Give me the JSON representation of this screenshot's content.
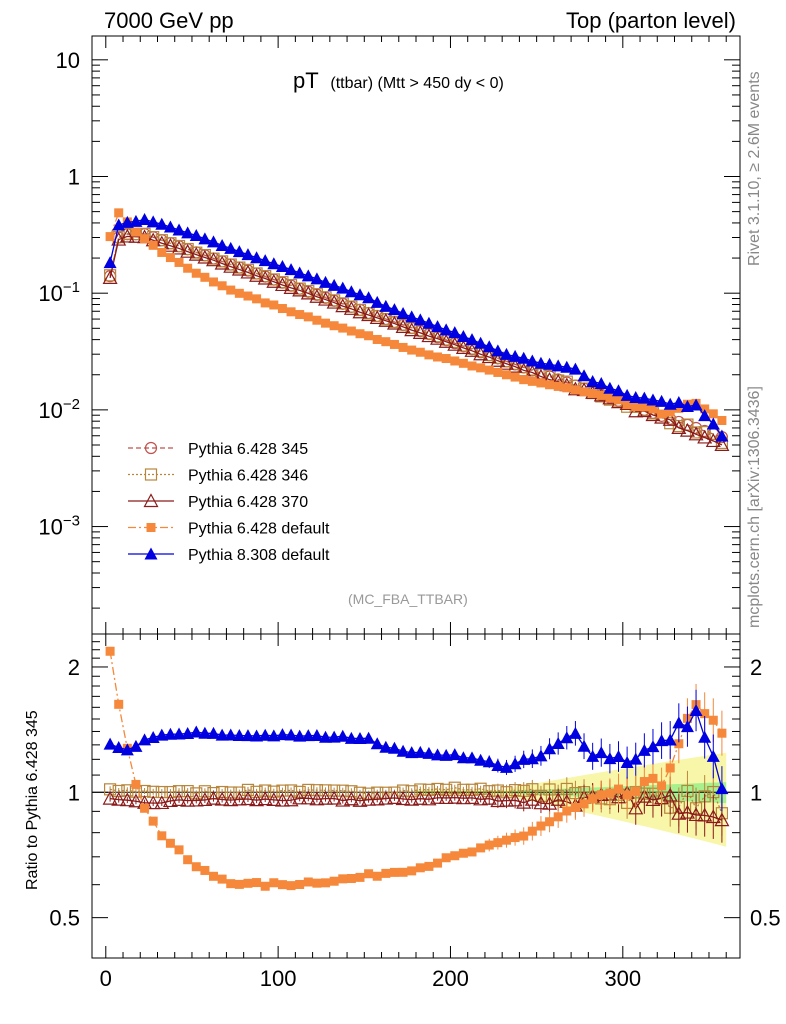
{
  "header": {
    "left": "7000 GeV pp",
    "right": "Top (parton level)"
  },
  "side_labels": {
    "rivet": "Rivet 3.1.10, ≥ 2.6M events",
    "mcplots": "mcplots.cern.ch [arXiv:1306.3436]"
  },
  "chart_data": [
    {
      "type": "line",
      "panel": "main",
      "title_main": "pT",
      "title_sub": "(ttbar) (Mtt > 450 dy < 0)",
      "watermark": "(MC_FBA_TTBAR)",
      "xlabel": "",
      "ylabel": "",
      "y_scale": "log",
      "xlim": [
        -8,
        368
      ],
      "ylim": [
        0.00012,
        16
      ],
      "y_ticks": [
        {
          "value": 10,
          "base": "10",
          "exp": ""
        },
        {
          "value": 1,
          "base": "1",
          "exp": ""
        },
        {
          "value": 0.1,
          "base": "10",
          "exp": "−1"
        },
        {
          "value": 0.01,
          "base": "10",
          "exp": "−2"
        },
        {
          "value": 0.001,
          "base": "10",
          "exp": "−3"
        }
      ],
      "legend": [
        {
          "name": "Pythia 6.428 345",
          "color": "#c0504d",
          "marker": "open-circle",
          "dash": "5,3"
        },
        {
          "name": "Pythia 6.428 346",
          "color": "#b8863b",
          "marker": "open-square",
          "dash": "2,2"
        },
        {
          "name": "Pythia 6.428 370",
          "color": "#8b1a1a",
          "marker": "open-triangle",
          "dash": ""
        },
        {
          "name": "Pythia 6.428 default",
          "color": "#f5883a",
          "marker": "filled-square",
          "dash": "8,3,2,3"
        },
        {
          "name": "Pythia 8.308 default",
          "color": "#0000e0",
          "marker": "filled-triangle",
          "dash": ""
        }
      ],
      "series_shape": {
        "x_start": 2.5,
        "x_step": 5,
        "n_bins": 72,
        "reference_rise": [
          0.14,
          0.3,
          0.32
        ],
        "reference_peak": 0.33,
        "reference_decay_per_unit": 0.01195,
        "reference_decay_start_x": 20
      }
    },
    {
      "type": "line",
      "panel": "ratio",
      "ylabel": "Ratio to Pythia 6.428 345",
      "y_scale": "log",
      "ylim": [
        0.4,
        2.4
      ],
      "y_ticks": [
        {
          "value": 0.5,
          "label": "0.5"
        },
        {
          "value": 1,
          "label": "1"
        },
        {
          "value": 2,
          "label": "2"
        }
      ],
      "x_ticks": [
        {
          "value": 0,
          "label": "0"
        },
        {
          "value": 100,
          "label": "100"
        },
        {
          "value": 200,
          "label": "200"
        },
        {
          "value": 300,
          "label": "300"
        }
      ],
      "xlabel": "",
      "series": [
        {
          "name": "Pythia 6.428 346",
          "x": [
            2.5,
            52.5,
            102.5,
            152.5,
            202.5,
            252.5,
            302.5,
            357.5
          ],
          "values": [
            1.01,
            1.0,
            1.01,
            1.0,
            1.02,
            1.0,
            0.98,
            0.95
          ]
        },
        {
          "name": "Pythia 6.428 370",
          "x": [
            2.5,
            22.5,
            52.5,
            102.5,
            152.5,
            202.5,
            252.5,
            302.5,
            357.5
          ],
          "values": [
            0.96,
            0.94,
            0.96,
            0.96,
            0.96,
            0.97,
            0.95,
            0.96,
            0.92
          ]
        },
        {
          "name": "Pythia 6.428 default",
          "x": [
            2.5,
            7.5,
            12.5,
            17.5,
            22.5,
            27.5,
            32.5,
            42.5,
            52.5,
            62.5,
            72.5,
            82.5,
            92.5,
            102.5,
            122.5,
            142.5,
            162.5,
            182.5,
            202.5,
            222.5,
            242.5,
            262.5,
            282.5,
            302.5,
            322.5,
            342.5,
            357.5
          ],
          "values": [
            2.18,
            1.62,
            1.28,
            1.05,
            0.92,
            0.85,
            0.79,
            0.72,
            0.66,
            0.63,
            0.61,
            0.6,
            0.6,
            0.6,
            0.61,
            0.62,
            0.64,
            0.66,
            0.7,
            0.74,
            0.79,
            0.87,
            0.95,
            0.99,
            1.05,
            1.6,
            1.35
          ]
        },
        {
          "name": "Pythia 8.308 default",
          "x": [
            2.5,
            12.5,
            22.5,
            32.5,
            42.5,
            52.5,
            72.5,
            102.5,
            132.5,
            152.5,
            162.5,
            182.5,
            202.5,
            222.5,
            232.5,
            252.5,
            272.5,
            282.5,
            302.5,
            322.5,
            342.5,
            357.5
          ],
          "values": [
            1.31,
            1.26,
            1.33,
            1.37,
            1.38,
            1.39,
            1.37,
            1.37,
            1.36,
            1.35,
            1.28,
            1.24,
            1.23,
            1.18,
            1.15,
            1.22,
            1.38,
            1.25,
            1.2,
            1.3,
            1.55,
            1.0
          ]
        }
      ]
    }
  ]
}
